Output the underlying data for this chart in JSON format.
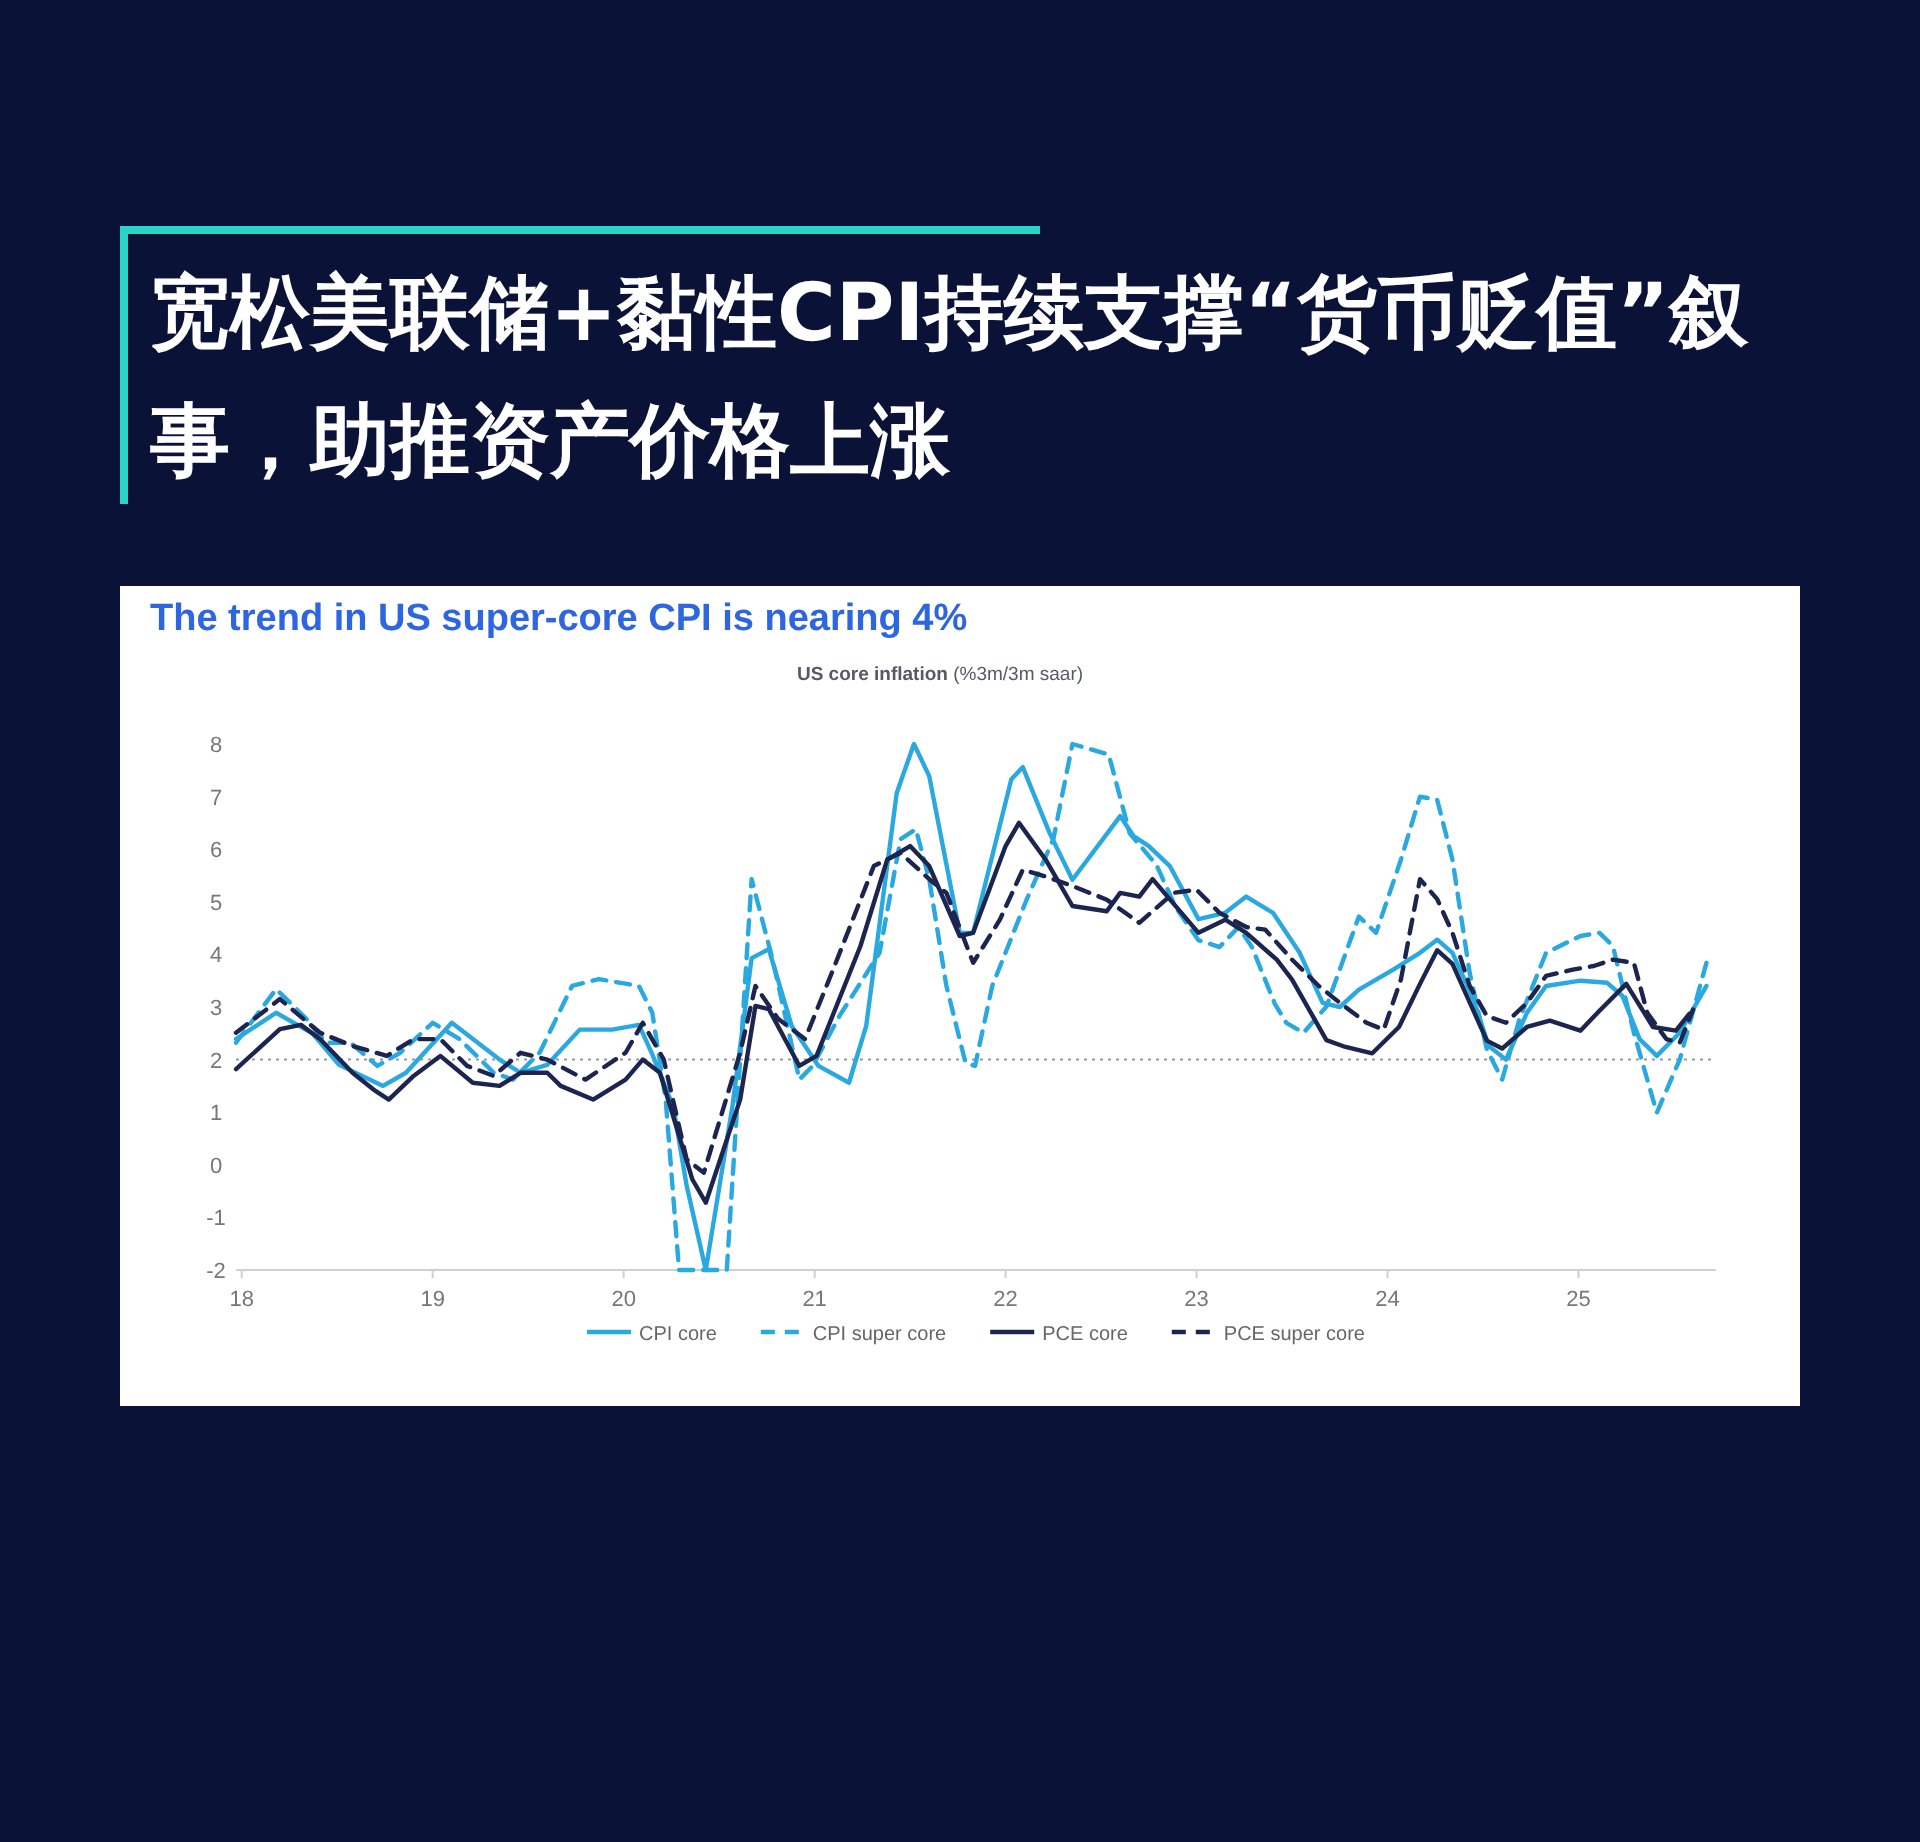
{
  "chart_data": {
    "type": "line",
    "title": "宽松美联储+黏性CPI持续支撑“货币贬值”叙事，助推资产价格上涨",
    "subtitle": "The trend in US super-core CPI is nearing 4%",
    "annotations": [
      "**US core inflation** (%3m/3m saar)"
    ],
    "xlim": [
      17.97,
      25.72
    ],
    "xticks": [
      18,
      19,
      20,
      21,
      22,
      23,
      24,
      25
    ],
    "ylim": [
      -2,
      8
    ],
    "yticks": [
      -2,
      -1,
      0,
      1,
      2,
      3,
      4,
      5,
      6,
      7,
      8
    ],
    "grid": false,
    "legend": "bottom",
    "marker": "none",
    "ref_lines": [
      {
        "axis": "y",
        "value": 2,
        "color": "#9a9a9a",
        "line_style": "dotted"
      }
    ],
    "series": [
      {
        "name": "CPI core",
        "color": "#2aa8e0",
        "line_style": "solid",
        "x": [
          17.97,
          18.18,
          18.37,
          18.51,
          18.74,
          18.86,
          19.1,
          19.35,
          19.46,
          19.6,
          19.77,
          19.94,
          20.08,
          20.15,
          20.26,
          20.33,
          20.43,
          20.57,
          20.67,
          20.76,
          20.88,
          21.02,
          21.18,
          21.27,
          21.43,
          21.52,
          21.6,
          21.76,
          21.83,
          22.03,
          22.09,
          22.23,
          22.35,
          22.6,
          22.67,
          22.75,
          22.86,
          23.01,
          23.15,
          23.26,
          23.4,
          23.54,
          23.66,
          23.75,
          23.85,
          24.03,
          24.17,
          24.26,
          24.34,
          24.45,
          24.53,
          24.62,
          24.73,
          24.83,
          25.01,
          25.15,
          25.23,
          25.32,
          25.41,
          25.53,
          25.67
        ],
        "values": [
          2.39,
          2.89,
          2.5,
          1.9,
          1.5,
          1.75,
          2.7,
          2.0,
          1.75,
          1.9,
          2.57,
          2.57,
          2.66,
          2.1,
          1.1,
          -0.4,
          -2.0,
          1.12,
          3.93,
          4.1,
          2.64,
          1.88,
          1.56,
          2.64,
          7.07,
          8.0,
          7.39,
          4.41,
          4.41,
          7.33,
          7.56,
          6.31,
          5.42,
          6.63,
          6.25,
          6.06,
          5.68,
          4.67,
          4.79,
          5.1,
          4.79,
          4.03,
          3.08,
          3.0,
          3.33,
          3.71,
          4.03,
          4.28,
          4.03,
          3.14,
          2.26,
          2.0,
          2.89,
          3.4,
          3.5,
          3.46,
          3.21,
          2.39,
          2.07,
          2.51,
          3.4
        ]
      },
      {
        "name": "CPI super core",
        "color": "#2aa8e0",
        "line_style": "dashed",
        "x": [
          17.97,
          18.18,
          18.34,
          18.44,
          18.57,
          18.71,
          18.83,
          19.0,
          19.14,
          19.32,
          19.42,
          19.56,
          19.73,
          19.87,
          20.08,
          20.15,
          20.22,
          20.29,
          20.54,
          20.67,
          20.78,
          20.92,
          20.99,
          21.13,
          21.34,
          21.45,
          21.53,
          21.6,
          21.69,
          21.79,
          21.84,
          21.93,
          22.11,
          22.25,
          22.35,
          22.54,
          22.65,
          22.79,
          22.89,
          23.01,
          23.12,
          23.22,
          23.29,
          23.41,
          23.47,
          23.56,
          23.68,
          23.85,
          23.94,
          24.07,
          24.17,
          24.26,
          24.34,
          24.43,
          24.52,
          24.6,
          24.69,
          24.83,
          25.01,
          25.11,
          25.18,
          25.29,
          25.41,
          25.53,
          25.67
        ],
        "values": [
          2.32,
          3.34,
          2.77,
          2.32,
          2.32,
          1.88,
          2.13,
          2.7,
          2.39,
          1.75,
          1.62,
          2.13,
          3.4,
          3.53,
          3.4,
          2.89,
          1.24,
          -2.0,
          -2.0,
          5.43,
          3.9,
          1.62,
          1.88,
          2.83,
          4.03,
          6.19,
          6.38,
          5.43,
          3.4,
          1.94,
          1.88,
          3.4,
          5.04,
          6.19,
          8.0,
          7.8,
          6.3,
          5.7,
          4.9,
          4.27,
          4.14,
          4.52,
          4.14,
          3.06,
          2.7,
          2.51,
          3.01,
          4.72,
          4.41,
          5.8,
          7.0,
          6.94,
          5.8,
          3.65,
          2.19,
          1.62,
          2.76,
          4.03,
          4.35,
          4.41,
          4.16,
          2.51,
          0.99,
          2.0,
          3.84
        ]
      },
      {
        "name": "PCE core",
        "color": "#1c2550",
        "line_style": "solid",
        "x": [
          17.97,
          18.2,
          18.31,
          18.41,
          18.58,
          18.69,
          18.77,
          18.9,
          19.04,
          19.21,
          19.35,
          19.46,
          19.6,
          19.67,
          19.84,
          20.01,
          20.1,
          20.19,
          20.36,
          20.43,
          20.61,
          20.69,
          20.76,
          20.92,
          21.01,
          21.24,
          21.38,
          21.5,
          21.6,
          21.76,
          21.83,
          22.0,
          22.07,
          22.21,
          22.35,
          22.53,
          22.6,
          22.7,
          22.77,
          23.01,
          23.15,
          23.26,
          23.42,
          23.5,
          23.68,
          23.78,
          23.92,
          24.06,
          24.17,
          24.26,
          24.34,
          24.52,
          24.6,
          24.73,
          24.85,
          25.01,
          25.11,
          25.25,
          25.39,
          25.51,
          25.58
        ],
        "values": [
          1.82,
          2.58,
          2.66,
          2.39,
          1.75,
          1.43,
          1.24,
          1.69,
          2.07,
          1.56,
          1.5,
          1.75,
          1.75,
          1.5,
          1.24,
          1.62,
          2.0,
          1.75,
          -0.28,
          -0.72,
          1.24,
          3.02,
          2.96,
          1.88,
          2.07,
          4.16,
          5.8,
          6.06,
          5.68,
          4.35,
          4.41,
          6.06,
          6.5,
          5.8,
          4.92,
          4.82,
          5.17,
          5.1,
          5.43,
          4.41,
          4.66,
          4.41,
          3.9,
          3.52,
          2.37,
          2.24,
          2.12,
          2.62,
          3.44,
          4.08,
          3.82,
          2.36,
          2.21,
          2.62,
          2.74,
          2.55,
          2.93,
          3.44,
          2.62,
          2.55,
          2.87
        ]
      },
      {
        "name": "PCE super core",
        "color": "#1c2550",
        "line_style": "dashed",
        "x": [
          17.97,
          18.2,
          18.41,
          18.58,
          18.76,
          18.9,
          19.04,
          19.18,
          19.32,
          19.46,
          19.6,
          19.8,
          20.01,
          20.1,
          20.21,
          20.33,
          20.42,
          20.61,
          20.69,
          20.81,
          20.95,
          21.09,
          21.31,
          21.45,
          21.6,
          21.69,
          21.83,
          21.97,
          22.09,
          22.21,
          22.35,
          22.53,
          22.7,
          22.88,
          23.0,
          23.12,
          23.26,
          23.36,
          23.5,
          23.64,
          23.75,
          23.89,
          23.98,
          24.07,
          24.17,
          24.26,
          24.34,
          24.43,
          24.52,
          24.62,
          24.73,
          24.83,
          24.97,
          25.08,
          25.18,
          25.29,
          25.36,
          25.46,
          25.53,
          25.6
        ],
        "values": [
          2.51,
          3.15,
          2.51,
          2.26,
          2.07,
          2.39,
          2.39,
          1.88,
          1.69,
          2.13,
          2.0,
          1.62,
          2.13,
          2.7,
          2.0,
          0.1,
          -0.15,
          2.13,
          3.4,
          2.77,
          2.39,
          3.65,
          5.68,
          5.93,
          5.43,
          5.17,
          3.84,
          4.66,
          5.61,
          5.48,
          5.3,
          5.04,
          4.6,
          5.17,
          5.23,
          4.79,
          4.52,
          4.47,
          3.9,
          3.4,
          3.08,
          2.7,
          2.57,
          3.52,
          5.43,
          5.05,
          4.41,
          3.4,
          2.83,
          2.7,
          3.08,
          3.59,
          3.71,
          3.78,
          3.9,
          3.84,
          2.89,
          2.39,
          2.32,
          2.95
        ]
      }
    ]
  }
}
